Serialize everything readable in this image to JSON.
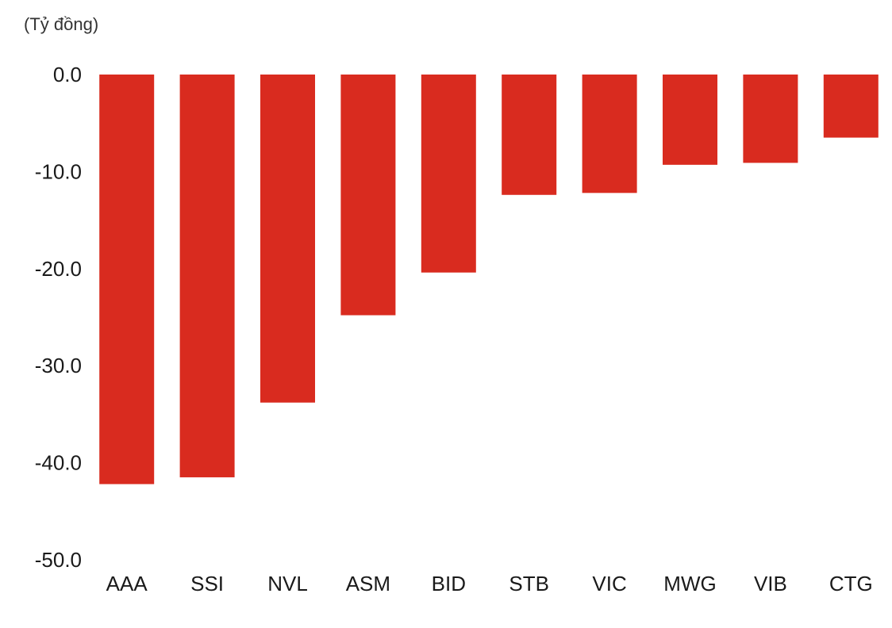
{
  "chart_data": {
    "type": "bar",
    "unit_label": "(Tỷ đồng)",
    "categories": [
      "AAA",
      "SSI",
      "NVL",
      "ASM",
      "BID",
      "STB",
      "VIC",
      "MWG",
      "VIB",
      "CTG"
    ],
    "values": [
      -42.2,
      -41.5,
      -33.8,
      -24.8,
      -20.4,
      -12.4,
      -12.2,
      -9.3,
      -9.1,
      -6.5
    ],
    "y_ticks": [
      "0.0",
      "-10.0",
      "-20.0",
      "-30.0",
      "-40.0",
      "-50.0"
    ],
    "ylim": [
      -50,
      0
    ],
    "grid": false,
    "legend": "none",
    "bar_color": "#d92b1f"
  }
}
